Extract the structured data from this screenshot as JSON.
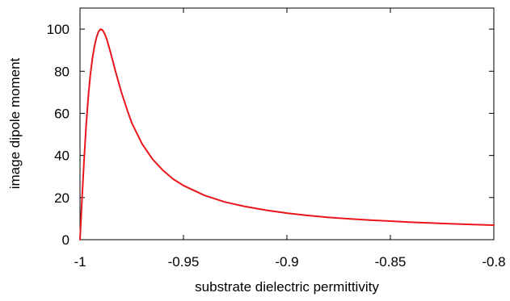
{
  "chart_data": {
    "type": "line",
    "xlabel": "substrate dielectric permittivity",
    "ylabel": "image dipole moment",
    "xlim": [
      -1.0,
      -0.8
    ],
    "ylim": [
      0,
      110
    ],
    "xticks": [
      -1.0,
      -0.95,
      -0.9,
      -0.85,
      -0.8
    ],
    "xtick_labels": [
      "-1",
      "-0.95",
      "-0.9",
      "-0.85",
      "-0.8"
    ],
    "yticks": [
      0,
      20,
      40,
      60,
      80,
      100
    ],
    "ytick_labels": [
      "0",
      "20",
      "40",
      "60",
      "80",
      "100"
    ],
    "grid": false,
    "legend": "none",
    "series": [
      {
        "color": "#e8161b",
        "x": [
          -1.0,
          -0.999,
          -0.998,
          -0.997,
          -0.996,
          -0.995,
          -0.994,
          -0.993,
          -0.992,
          -0.991,
          -0.99,
          -0.989,
          -0.988,
          -0.987,
          -0.985,
          -0.983,
          -0.98,
          -0.977,
          -0.975,
          -0.97,
          -0.965,
          -0.96,
          -0.955,
          -0.95,
          -0.94,
          -0.93,
          -0.92,
          -0.91,
          -0.9,
          -0.89,
          -0.88,
          -0.87,
          -0.86,
          -0.85,
          -0.84,
          -0.83,
          -0.82,
          -0.81,
          -0.8
        ],
        "y": [
          0,
          20,
          38.5,
          54.7,
          68,
          78.4,
          86.2,
          92,
          96.2,
          98.9,
          100,
          99.4,
          97.6,
          95,
          88,
          80.5,
          70,
          61,
          55.5,
          45.5,
          38.3,
          33,
          28.8,
          25.7,
          21.1,
          17.9,
          15.7,
          14.0,
          12.6,
          11.5,
          10.6,
          9.9,
          9.3,
          8.8,
          8.3,
          7.9,
          7.5,
          7.2,
          6.9
        ]
      }
    ]
  }
}
